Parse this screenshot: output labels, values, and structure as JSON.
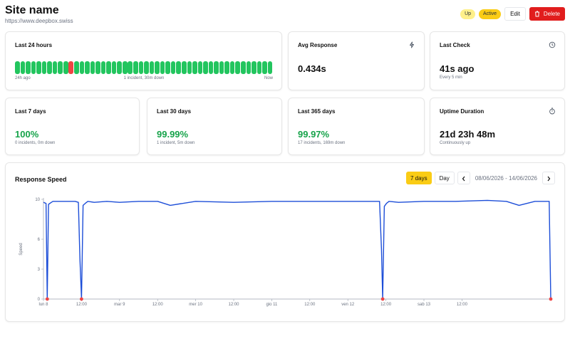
{
  "header": {
    "title": "Site name",
    "url": "https://www.deepbox.swiss",
    "badge_up": "Up",
    "badge_active": "Active",
    "edit_label": "Edit",
    "delete_label": "Delete"
  },
  "last24": {
    "label": "Last 24 hours",
    "bar_count": 48,
    "incident_bars": [
      10
    ],
    "start_label": "24h ago",
    "summary": "1 incident, 30m down",
    "end_label": "Now"
  },
  "avg_response": {
    "label": "Avg Response",
    "value": "0.434s",
    "icon": "lightning-icon"
  },
  "last_check": {
    "label": "Last Check",
    "value": "41s ago",
    "sub": "Every 5 min",
    "icon": "clock-icon"
  },
  "uptime_cards": [
    {
      "label": "Last 7 days",
      "value": "100%",
      "sub": "0 incidents, 0m down"
    },
    {
      "label": "Last 30 days",
      "value": "99.99%",
      "sub": "1 incident, 5m down"
    },
    {
      "label": "Last 365 days",
      "value": "99.97%",
      "sub": "17 incidents, 169m down"
    }
  ],
  "uptime_duration": {
    "label": "Uptime Duration",
    "value": "21d 23h 48m",
    "sub": "Continuously up",
    "icon": "stopwatch-icon"
  },
  "response_speed": {
    "title": "Response Speed",
    "range_7d": "7 days",
    "range_day": "Day",
    "date_range": "08/06/2026 - 14/06/2026"
  },
  "colors": {
    "accent_yellow": "#facc15",
    "delete_red": "#e11d1d",
    "up_green": "#22c55e",
    "text_green": "#16a34a",
    "incident_red": "#ef4444",
    "line_blue": "#1d4ed8"
  },
  "chart_data": {
    "type": "line",
    "ylabel": "Speed",
    "ylim": [
      0,
      10
    ],
    "y_ticks": [
      0,
      3,
      6,
      10
    ],
    "x_tick_labels": [
      "lun 8",
      "12:00",
      "mar 9",
      "12:00",
      "mer 10",
      "12:00",
      "gio 11",
      "12:00",
      "ven 12",
      "12:00",
      "sab 13",
      "12:00"
    ],
    "x_range_hours": [
      0,
      160
    ],
    "series": [
      {
        "x": [
          0,
          0.8,
          1.2,
          1.6,
          2.5,
          3,
          4,
          10,
          11,
          11.5,
          12,
          12.5,
          13.2,
          14,
          16,
          20,
          24,
          30,
          36,
          40,
          48,
          60,
          72,
          80,
          90,
          100,
          106,
          106.6,
          107,
          107.5,
          108.2,
          109,
          112,
          120,
          130,
          140,
          146,
          150,
          155,
          158.5,
          159.5,
          160
        ],
        "y": [
          9.7,
          9.6,
          0,
          9.5,
          9.7,
          9.8,
          9.8,
          9.8,
          9.7,
          4,
          0,
          9.4,
          9.6,
          9.8,
          9.7,
          9.8,
          9.7,
          9.8,
          9.8,
          9.4,
          9.8,
          9.7,
          9.8,
          9.8,
          9.8,
          9.8,
          9.8,
          5,
          0,
          9.3,
          9.6,
          9.8,
          9.7,
          9.8,
          9.8,
          9.9,
          9.8,
          9.4,
          9.8,
          9.8,
          9.8,
          0
        ]
      }
    ],
    "incident_points_x": [
      1.2,
      12,
      107,
      160
    ]
  }
}
